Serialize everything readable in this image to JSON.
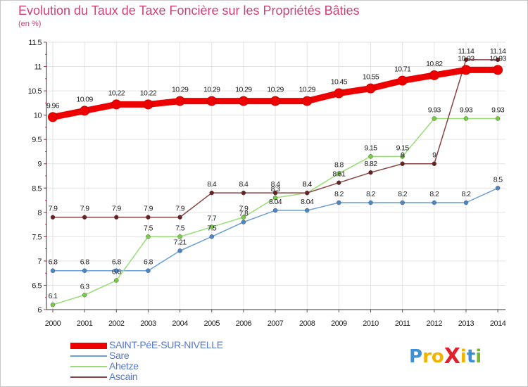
{
  "title": "Evolution du Taux de Taxe Foncière sur les Propriétés Bâties",
  "unit": "(en %)",
  "brand": {
    "text": "ProXiti",
    "letters": [
      "P",
      "r",
      "o",
      "X",
      "i",
      "t",
      "i"
    ],
    "colors": [
      "#3d8fd6",
      "#f0b400",
      "#f0b400",
      "#e0212b",
      "#f0b400",
      "#3d8fd6",
      "#7ab72e"
    ]
  },
  "chart_data": {
    "type": "line",
    "title": "Evolution du Taux de Taxe Foncière sur les Propriétés Bâties",
    "ylabel": "(en %)",
    "xlabel": "",
    "x": [
      "2000",
      "2001",
      "2002",
      "2003",
      "2004",
      "2005",
      "2006",
      "2007",
      "2008",
      "2009",
      "2010",
      "2011",
      "2012",
      "2013",
      "2014"
    ],
    "ylim": [
      6,
      11.5
    ],
    "yticks": [
      "6",
      "6.5",
      "7",
      "7.5",
      "8",
      "8.5",
      "9",
      "9.5",
      "10",
      "10.5",
      "11",
      "11.5"
    ],
    "ytick_values": [
      6,
      6.5,
      7,
      7.5,
      8,
      8.5,
      9,
      9.5,
      10,
      10.5,
      11,
      11.5
    ],
    "grid": true,
    "legend_position": "bottom-left",
    "series": [
      {
        "name": "SAINT-PéE-SUR-NIVELLE",
        "color": "#ee0000",
        "marker_color": "#ee0000",
        "bold": true,
        "values": [
          9.96,
          10.09,
          10.22,
          10.22,
          10.29,
          10.29,
          10.29,
          10.29,
          10.29,
          10.45,
          10.55,
          10.71,
          10.82,
          10.93,
          10.93
        ],
        "labels": [
          "9.96",
          "10.09",
          "10.22",
          "10.22",
          "10.29",
          "10.29",
          "10.29",
          "10.29",
          "10.29",
          "10.45",
          "10.55",
          "10.71",
          "10.82",
          "10.93",
          "10.93"
        ]
      },
      {
        "name": "Sare",
        "color": "#6a9fd4",
        "marker_color": "#4a86c8",
        "bold": false,
        "values": [
          6.8,
          6.8,
          6.8,
          6.8,
          7.21,
          7.5,
          7.8,
          8.04,
          8.04,
          8.2,
          8.2,
          8.2,
          8.2,
          8.2,
          8.5
        ],
        "labels": [
          "6.8",
          "6.8",
          "6.8",
          "6.8",
          "7.21",
          "7.5",
          "7.8",
          "8.04",
          "8.04",
          "8.2",
          "8.2",
          "8.2",
          "8.2",
          "8.2",
          "8.5"
        ]
      },
      {
        "name": "Ahetze",
        "color": "#99dd77",
        "marker_color": "#7acc44",
        "bold": false,
        "values": [
          6.1,
          6.3,
          6.6,
          7.5,
          7.5,
          7.7,
          7.9,
          8.3,
          8.4,
          8.8,
          9.15,
          9.15,
          9.93,
          9.93,
          9.93
        ],
        "labels": [
          "6.1",
          "6.3",
          "6.6",
          "7.5",
          "7.5",
          "7.7",
          "7.9",
          "8.3",
          "8.4",
          "8.8",
          "9.15",
          "9.15",
          "9.93",
          "9.93",
          "9.93"
        ]
      },
      {
        "name": "Ascain",
        "color": "#884444",
        "marker_color": "#662222",
        "bold": false,
        "values": [
          7.9,
          7.9,
          7.9,
          7.9,
          7.9,
          8.4,
          8.4,
          8.4,
          8.4,
          8.61,
          8.82,
          9,
          9,
          11.14,
          11.14
        ],
        "labels": [
          "7.9",
          "7.9",
          "7.9",
          "7.9",
          "7.9",
          "8.4",
          "8.4",
          "8.4",
          "8.4",
          "8.61",
          "8.82",
          "9",
          "9",
          "11.14",
          "11.14"
        ]
      }
    ]
  }
}
